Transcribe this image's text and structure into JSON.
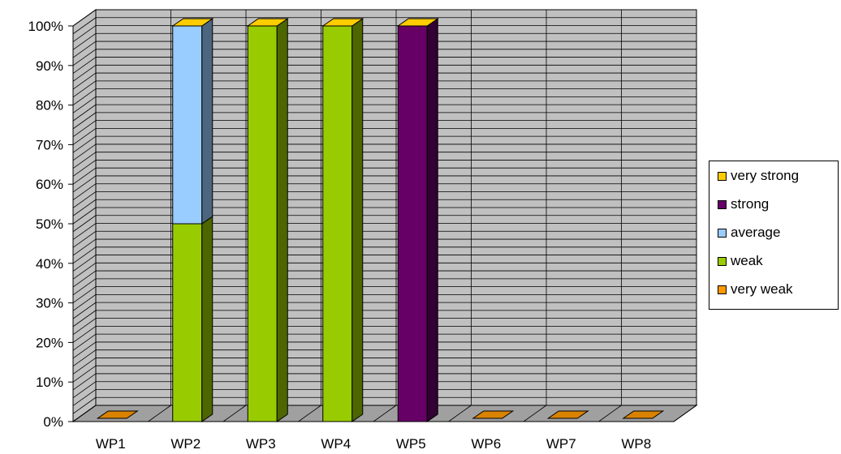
{
  "chart_data": {
    "type": "bar",
    "stacked": true,
    "percent": true,
    "three_d": true,
    "categories": [
      "WP1",
      "WP2",
      "WP3",
      "WP4",
      "WP5",
      "WP6",
      "WP7",
      "WP8"
    ],
    "series": [
      {
        "name": "very weak",
        "color": "#ff9900",
        "values": [
          0,
          0,
          0,
          0,
          0,
          0,
          0,
          0
        ]
      },
      {
        "name": "weak",
        "color": "#99cc00",
        "values": [
          0,
          50,
          100,
          100,
          0,
          0,
          0,
          0
        ]
      },
      {
        "name": "average",
        "color": "#99ccff",
        "values": [
          0,
          50,
          0,
          0,
          0,
          0,
          0,
          0
        ]
      },
      {
        "name": "strong",
        "color": "#660066",
        "values": [
          0,
          0,
          0,
          0,
          100,
          0,
          0,
          0
        ]
      },
      {
        "name": "very strong",
        "color": "#ffcc00",
        "values": [
          0,
          0,
          0,
          0,
          0,
          0,
          0,
          0
        ]
      }
    ],
    "yticks": [
      "0%",
      "10%",
      "20%",
      "30%",
      "40%",
      "50%",
      "60%",
      "70%",
      "80%",
      "90%",
      "100%"
    ],
    "ylim": [
      0,
      100
    ],
    "grid": true,
    "legend_position": "right",
    "wall_color": "#c0c0c0"
  }
}
